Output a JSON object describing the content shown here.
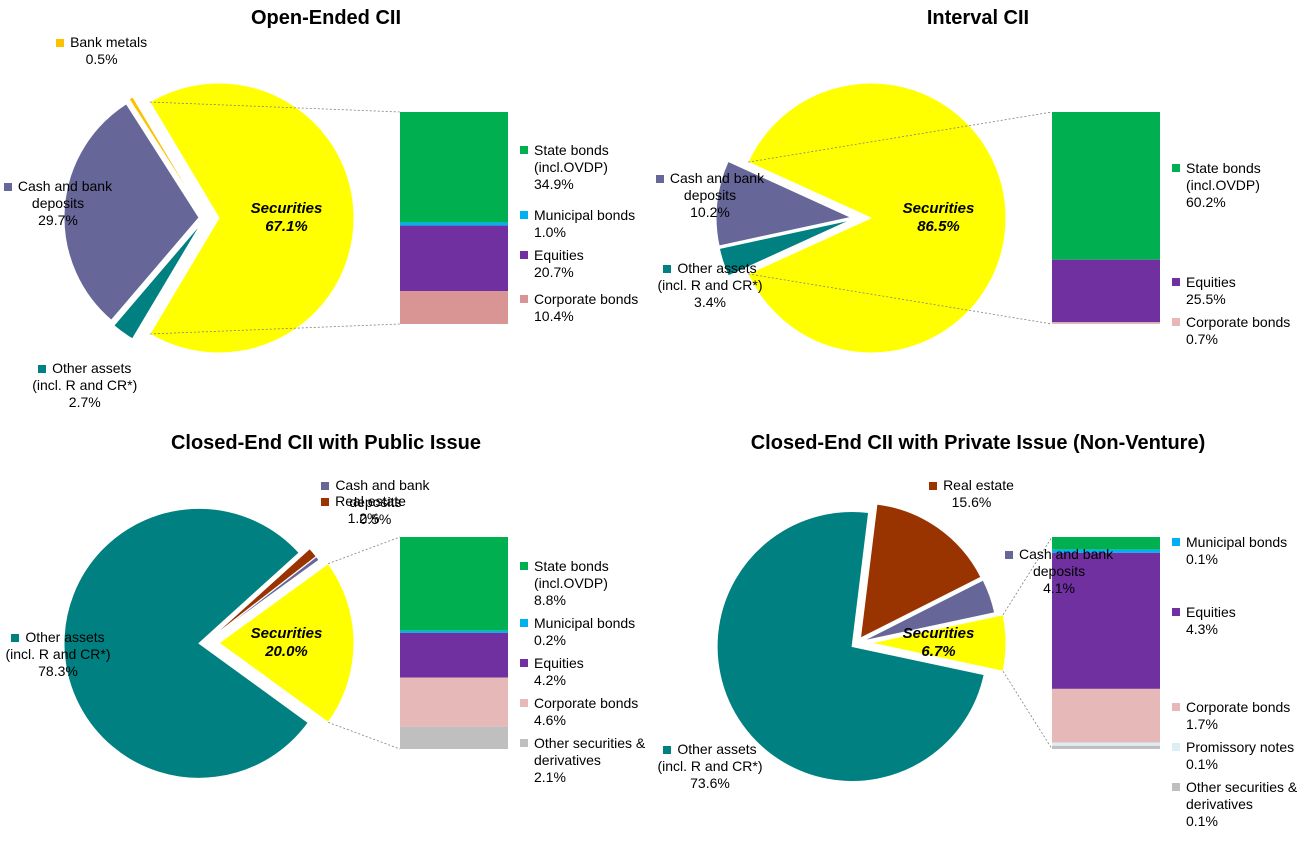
{
  "chart_data": [
    {
      "type": "pie",
      "title": "Open-Ended CII",
      "categories": [
        "Securities",
        "Other assets (incl. R and CR*)",
        "Cash and bank deposits",
        "Bank metals"
      ],
      "values": [
        67.1,
        2.7,
        29.7,
        0.5
      ],
      "value_labels": [
        "67.1%",
        "2.7%",
        "29.7%",
        "0.5%"
      ],
      "colors": [
        "#ffff00",
        "#008080",
        "#666699",
        "#ffc000"
      ],
      "breakdown": {
        "categories": [
          "State bonds (incl.OVDP)",
          "Municipal bonds",
          "Equities",
          "Corporate bonds"
        ],
        "values": [
          34.9,
          1.0,
          20.7,
          10.4
        ],
        "value_labels": [
          "34.9%",
          "1.0%",
          "20.7%",
          "10.4%"
        ],
        "colors": [
          "#00b050",
          "#00b0f0",
          "#7030a0",
          "#d99594"
        ]
      }
    },
    {
      "type": "pie",
      "title": "Interval CII",
      "categories": [
        "Securities",
        "Other assets (incl. R and CR*)",
        "Cash and bank deposits"
      ],
      "values": [
        86.5,
        3.4,
        10.2
      ],
      "value_labels": [
        "86.5%",
        "3.4%",
        "10.2%"
      ],
      "colors": [
        "#ffff00",
        "#008080",
        "#666699"
      ],
      "breakdown": {
        "categories": [
          "State bonds (incl.OVDP)",
          "Equities",
          "Corporate bonds"
        ],
        "values": [
          60.2,
          25.5,
          0.7
        ],
        "value_labels": [
          "60.2%",
          "25.5%",
          "0.7%"
        ],
        "colors": [
          "#00b050",
          "#7030a0",
          "#e6b9b8"
        ]
      }
    },
    {
      "type": "pie",
      "title": "Closed-End CII with Public Issue",
      "categories": [
        "Securities",
        "Other assets (incl. R and CR*)",
        "Real estate",
        "Cash and bank deposits"
      ],
      "values": [
        20.0,
        78.3,
        1.2,
        0.5
      ],
      "value_labels": [
        "20.0%",
        "78.3%",
        "1.2%",
        "0.5%"
      ],
      "colors": [
        "#ffff00",
        "#008080",
        "#993300",
        "#666699"
      ],
      "breakdown": {
        "categories": [
          "State bonds (incl.OVDP)",
          "Municipal bonds",
          "Equities",
          "Corporate bonds",
          "Other securities & derivatives"
        ],
        "values": [
          8.8,
          0.2,
          4.2,
          4.6,
          2.1
        ],
        "value_labels": [
          "8.8%",
          "0.2%",
          "4.2%",
          "4.6%",
          "2.1%"
        ],
        "colors": [
          "#00b050",
          "#00b0f0",
          "#7030a0",
          "#e6b9b8",
          "#bfbfbf"
        ]
      }
    },
    {
      "type": "pie",
      "title": "Closed-End CII with Private Issue (Non-Venture)",
      "categories": [
        "Securities",
        "Other assets (incl. R and CR*)",
        "Real estate",
        "Cash and bank deposits"
      ],
      "values": [
        6.7,
        73.6,
        15.6,
        4.1
      ],
      "value_labels": [
        "6.7%",
        "73.6%",
        "15.6%",
        "4.1%"
      ],
      "colors": [
        "#ffff00",
        "#008080",
        "#993300",
        "#666699"
      ],
      "breakdown": {
        "categories": [
          null,
          "Municipal bonds",
          "Equities",
          "Corporate bonds",
          "Promissory notes",
          "Other securities & derivatives"
        ],
        "values": [
          0.4,
          0.1,
          4.3,
          1.7,
          0.1,
          0.1
        ],
        "value_labels": [
          null,
          "0.1%",
          "4.3%",
          "1.7%",
          "0.1%",
          "0.1%"
        ],
        "colors": [
          "#00b050",
          "#00b0f0",
          "#7030a0",
          "#e6b9b8",
          "#dbeef3",
          "#bfbfbf"
        ]
      }
    }
  ]
}
